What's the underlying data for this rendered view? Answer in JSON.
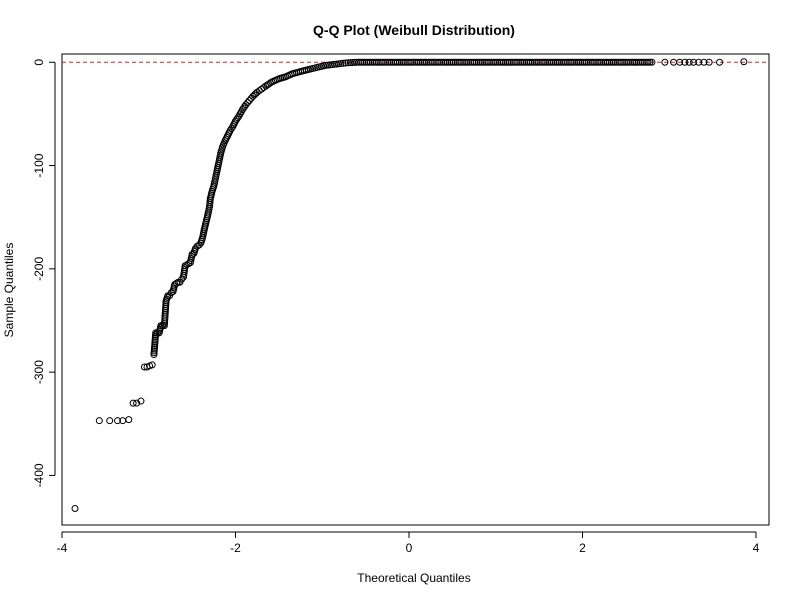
{
  "chart_data": {
    "type": "scatter",
    "title": "Q-Q Plot (Weibull Distribution)",
    "xlabel": "Theoretical Quantiles",
    "ylabel": "Sample Quantiles",
    "xlim": [
      -4.0,
      4.15
    ],
    "ylim": [
      -448,
      8
    ],
    "xticks": [
      -4,
      -2,
      0,
      2,
      4
    ],
    "yticks": [
      0,
      -100,
      -200,
      -300,
      -400
    ],
    "xtick_labels": [
      "-4",
      "-2",
      "0",
      "2",
      "4"
    ],
    "ytick_labels": [
      "0",
      "-100",
      "-200",
      "-300",
      "-400"
    ],
    "grid": false,
    "reference_line": {
      "y": 0,
      "style": "dashed",
      "color": "#d62728"
    },
    "marker": {
      "shape": "open-circle",
      "color": "#000000"
    },
    "colors": {
      "points": "#000000",
      "reference_line": "#d62728",
      "frame": "#000000"
    },
    "points": [
      [
        -3.85,
        -432
      ],
      [
        -3.57,
        -347
      ],
      [
        -3.45,
        -347
      ],
      [
        -3.36,
        -347
      ],
      [
        -3.3,
        -347
      ],
      [
        -3.23,
        -346
      ],
      [
        -3.18,
        -330
      ],
      [
        -3.14,
        -330
      ],
      [
        -3.09,
        -328
      ],
      [
        -3.05,
        -295
      ],
      [
        -3.02,
        -295
      ],
      [
        -2.99,
        -294
      ],
      [
        -2.96,
        -293
      ],
      [
        -2.94,
        -283
      ],
      [
        -2.92,
        -262
      ],
      [
        -2.9,
        -262
      ],
      [
        -2.88,
        -262
      ],
      [
        -2.86,
        -255
      ],
      [
        -2.84,
        -255
      ],
      [
        -2.82,
        -255
      ],
      [
        -2.8,
        -231
      ],
      [
        -2.78,
        -226
      ],
      [
        -2.76,
        -226
      ],
      [
        -2.74,
        -223
      ],
      [
        -2.72,
        -222
      ],
      [
        -2.7,
        -215
      ],
      [
        -2.68,
        -214
      ],
      [
        -2.66,
        -213
      ],
      [
        -2.64,
        -213
      ],
      [
        -2.62,
        -210
      ],
      [
        -2.6,
        -208
      ],
      [
        -2.58,
        -197
      ],
      [
        -2.56,
        -196
      ],
      [
        -2.54,
        -195
      ],
      [
        -2.52,
        -194
      ],
      [
        -2.5,
        -186
      ],
      [
        -2.48,
        -185
      ],
      [
        -2.46,
        -180
      ],
      [
        -2.44,
        -178
      ],
      [
        -2.42,
        -177
      ],
      [
        -2.4,
        -175
      ],
      [
        -2.38,
        -170
      ],
      [
        -2.36,
        -162
      ],
      [
        -2.34,
        -155
      ],
      [
        -2.32,
        -148
      ],
      [
        -2.3,
        -140
      ],
      [
        -2.29,
        -132
      ],
      [
        -2.27,
        -125
      ],
      [
        -2.25,
        -120
      ],
      [
        -2.23,
        -112
      ],
      [
        -2.21,
        -104
      ],
      [
        -2.19,
        -96
      ],
      [
        -2.17,
        -88
      ],
      [
        -2.15,
        -82
      ],
      [
        -2.12,
        -76
      ],
      [
        -2.09,
        -71
      ],
      [
        -2.06,
        -66
      ],
      [
        -2.03,
        -62
      ],
      [
        -2.0,
        -57
      ],
      [
        -1.96,
        -52
      ],
      [
        -1.92,
        -46
      ],
      [
        -1.88,
        -41
      ],
      [
        -1.84,
        -37
      ],
      [
        -1.8,
        -33
      ],
      [
        -1.75,
        -29
      ],
      [
        -1.7,
        -26
      ],
      [
        -1.65,
        -23
      ],
      [
        -1.58,
        -19
      ],
      [
        -1.5,
        -16
      ],
      [
        -1.42,
        -14
      ],
      [
        -1.34,
        -11
      ],
      [
        -1.25,
        -9
      ],
      [
        -1.16,
        -7
      ],
      [
        -1.06,
        -5
      ],
      [
        -0.96,
        -3
      ],
      [
        -0.86,
        -2
      ],
      [
        -0.76,
        -1
      ],
      [
        -0.7,
        -0.5
      ],
      [
        -0.6,
        0
      ],
      [
        -0.4,
        0
      ],
      [
        -0.2,
        0
      ],
      [
        0.0,
        0
      ],
      [
        0.2,
        0
      ],
      [
        0.4,
        0
      ],
      [
        0.6,
        0
      ],
      [
        0.8,
        0
      ],
      [
        1.0,
        0
      ],
      [
        1.2,
        0
      ],
      [
        1.4,
        0
      ],
      [
        1.6,
        0
      ],
      [
        1.8,
        0
      ],
      [
        2.0,
        0
      ],
      [
        2.2,
        0
      ],
      [
        2.4,
        0
      ],
      [
        2.6,
        0
      ],
      [
        2.8,
        0
      ],
      [
        2.95,
        0
      ],
      [
        3.05,
        0
      ],
      [
        3.12,
        0
      ],
      [
        3.18,
        0
      ],
      [
        3.23,
        0
      ],
      [
        3.28,
        0
      ],
      [
        3.34,
        0
      ],
      [
        3.4,
        0
      ],
      [
        3.46,
        0
      ],
      [
        3.58,
        0
      ],
      [
        3.86,
        0.5
      ]
    ]
  }
}
